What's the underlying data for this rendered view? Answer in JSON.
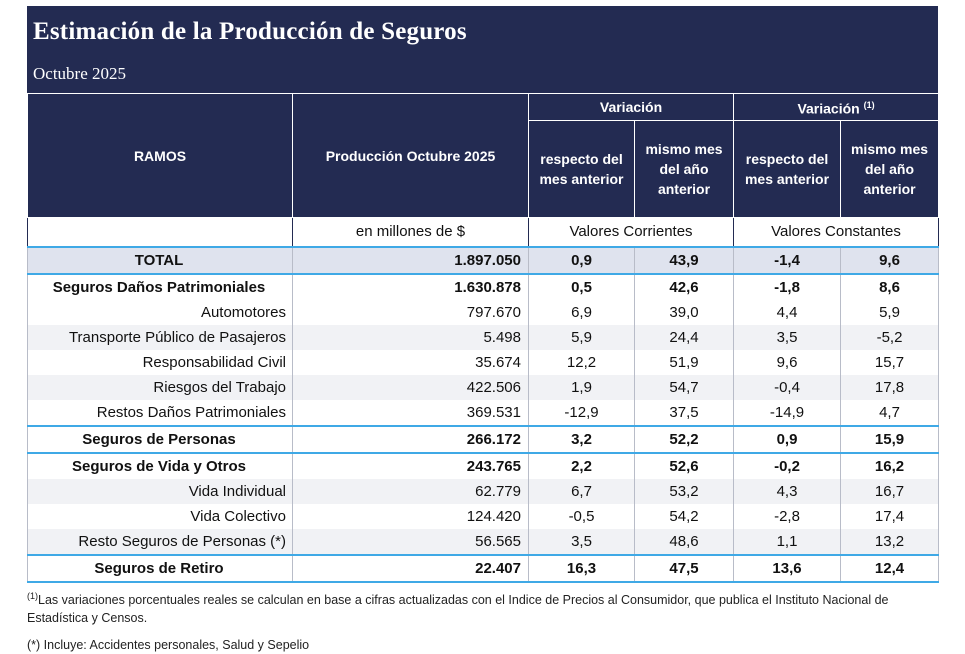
{
  "header": {
    "title": "Estimación de la Producción de Seguros",
    "subtitle": "Octubre 2025"
  },
  "columns": {
    "ramos": "RAMOS",
    "produccion": "Producción Octubre 2025",
    "variacion": "Variación",
    "variacion_real": "Variación",
    "variacion_real_sup": "(1)",
    "respecto": "respecto del mes anterior",
    "mismo_mes": "mismo mes del año anterior",
    "respecto2": "respecto del mes anterior",
    "mismo_mes2": "mismo mes del año anterior",
    "unidad": "en millones de $",
    "valores_corrientes": "Valores Corrientes",
    "valores_constantes": "Valores Constantes"
  },
  "rows": [
    {
      "name": "TOTAL",
      "prod": "1.897.050",
      "v1": "0,9",
      "v2": "43,9",
      "v3": "-1,4",
      "v4": "9,6"
    },
    {
      "name": "Seguros Daños Patrimoniales",
      "prod": "1.630.878",
      "v1": "0,5",
      "v2": "42,6",
      "v3": "-1,8",
      "v4": "8,6"
    },
    {
      "name": "Automotores",
      "prod": "797.670",
      "v1": "6,9",
      "v2": "39,0",
      "v3": "4,4",
      "v4": "5,9"
    },
    {
      "name": "Transporte Público de Pasajeros",
      "prod": "5.498",
      "v1": "5,9",
      "v2": "24,4",
      "v3": "3,5",
      "v4": "-5,2"
    },
    {
      "name": "Responsabilidad Civil",
      "prod": "35.674",
      "v1": "12,2",
      "v2": "51,9",
      "v3": "9,6",
      "v4": "15,7"
    },
    {
      "name": "Riesgos del Trabajo",
      "prod": "422.506",
      "v1": "1,9",
      "v2": "54,7",
      "v3": "-0,4",
      "v4": "17,8"
    },
    {
      "name": "Restos Daños Patrimoniales",
      "prod": "369.531",
      "v1": "-12,9",
      "v2": "37,5",
      "v3": "-14,9",
      "v4": "4,7"
    },
    {
      "name": "Seguros de Personas",
      "prod": "266.172",
      "v1": "3,2",
      "v2": "52,2",
      "v3": "0,9",
      "v4": "15,9"
    },
    {
      "name": "Seguros de Vida y Otros",
      "prod": "243.765",
      "v1": "2,2",
      "v2": "52,6",
      "v3": "-0,2",
      "v4": "16,2"
    },
    {
      "name": "Vida Individual",
      "prod": "62.779",
      "v1": "6,7",
      "v2": "53,2",
      "v3": "4,3",
      "v4": "16,7"
    },
    {
      "name": "Vida Colectivo",
      "prod": "124.420",
      "v1": "-0,5",
      "v2": "54,2",
      "v3": "-2,8",
      "v4": "17,4"
    },
    {
      "name": "Resto Seguros de Personas (*)",
      "prod": "56.565",
      "v1": "3,5",
      "v2": "48,6",
      "v3": "1,1",
      "v4": "13,2"
    },
    {
      "name": "Seguros de Retiro",
      "prod": "22.407",
      "v1": "16,3",
      "v2": "47,5",
      "v3": "13,6",
      "v4": "12,4"
    }
  ],
  "notes": {
    "note1_sup": "(1)",
    "note1": "Las variaciones porcentuales reales se calculan en base a cifras actualizadas con  el Indice de Precios al Consumidor, que publica el Instituto Nacional de Estadística y  Censos.",
    "note2": "(*) Incluye: Accidentes personales, Salud y Sepelio"
  }
}
